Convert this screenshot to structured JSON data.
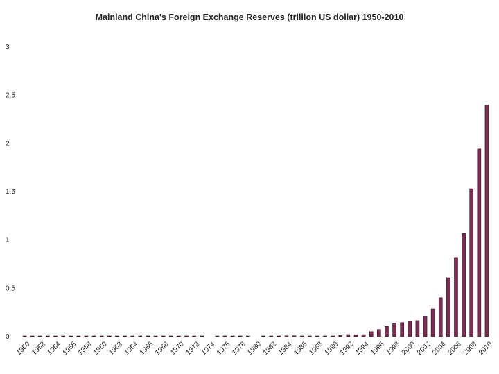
{
  "chart_data": {
    "type": "bar",
    "title": "Mainland China's Foreign Exchange Reserves (trillion US dollar) 1950-2010",
    "xlabel": "",
    "ylabel": "",
    "ylim": [
      0,
      3
    ],
    "yticks": [
      "0",
      "0.5",
      "1",
      "1.5",
      "2",
      "2.5",
      "3"
    ],
    "grid": false,
    "bar_color": "#7b2d52",
    "x_tick_labels": [
      "1950",
      "1952",
      "1954",
      "1956",
      "1958",
      "1960",
      "1962",
      "1964",
      "1966",
      "1968",
      "1970",
      "1972",
      "1974",
      "1976",
      "1978",
      "1980",
      "1982",
      "1984",
      "1986",
      "1988",
      "1990",
      "1992",
      "1994",
      "1996",
      "1998",
      "2000",
      "2002",
      "2004",
      "2006",
      "2008",
      "2010"
    ],
    "categories": [
      "1950",
      "1951",
      "1952",
      "1953",
      "1954",
      "1955",
      "1956",
      "1957",
      "1958",
      "1959",
      "1960",
      "1961",
      "1962",
      "1963",
      "1964",
      "1965",
      "1966",
      "1967",
      "1968",
      "1969",
      "1970",
      "1971",
      "1972",
      "1973",
      "1974",
      "1975",
      "1976",
      "1977",
      "1978",
      "1979",
      "1980",
      "1981",
      "1982",
      "1983",
      "1984",
      "1985",
      "1986",
      "1987",
      "1988",
      "1989",
      "1990",
      "1991",
      "1992",
      "1993",
      "1994",
      "1995",
      "1996",
      "1997",
      "1998",
      "1999",
      "2000",
      "2001",
      "2002",
      "2003",
      "2004",
      "2005",
      "2006",
      "2007",
      "2008",
      "2009",
      "2010"
    ],
    "values": [
      0.0002,
      0.0005,
      0.0011,
      0.0009,
      0.0009,
      0.0002,
      0.0012,
      0.0012,
      0.0007,
      0.0011,
      0.0005,
      0.0001,
      0.0008,
      0.0003,
      0.0002,
      0.0003,
      0.0002,
      0.0002,
      0.0002,
      0.0003,
      0.0001,
      0.0001,
      0.0002,
      0.0001,
      0,
      0.0002,
      0.0006,
      0.0006,
      0.0016,
      0.0008,
      0,
      0.0003,
      0.0003,
      0.0003,
      0.0083,
      0.0089,
      0.0026,
      0.0021,
      0.0023,
      0.0034,
      0.0055,
      0.0111,
      0.0217,
      0.0194,
      0.0212,
      0.0516,
      0.0736,
      0.105,
      0.1399,
      0.145,
      0.1547,
      0.1656,
      0.2122,
      0.2864,
      0.4033,
      0.6099,
      0.8189,
      1.0663,
      1.5282,
      1.946,
      2.3992
    ]
  }
}
